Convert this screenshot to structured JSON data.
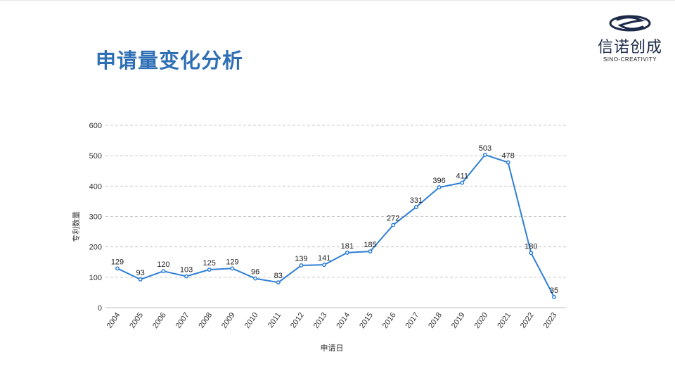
{
  "slide": {
    "title": "申请量变化分析"
  },
  "logo": {
    "name_cn": "信诺创成",
    "name_en": "SINO-CREATIVITY",
    "mark_icon": "sino-creativity-logo-icon",
    "color": "#1e2a4a"
  },
  "chart_data": {
    "type": "line",
    "title": "",
    "xlabel": "申请日",
    "ylabel": "专利数量",
    "ylim": [
      0,
      600
    ],
    "yticks": [
      0,
      100,
      200,
      300,
      400,
      500,
      600
    ],
    "grid": true,
    "legend": "none",
    "line_color": "#2f7fd6",
    "categories": [
      "2004",
      "2005",
      "2006",
      "2007",
      "2008",
      "2009",
      "2010",
      "2011",
      "2012",
      "2013",
      "2014",
      "2015",
      "2016",
      "2017",
      "2018",
      "2019",
      "2020",
      "2021",
      "2022",
      "2023"
    ],
    "series": [
      {
        "values": [
          129,
          93,
          120,
          103,
          125,
          129,
          96,
          83,
          139,
          141,
          181,
          185,
          272,
          331,
          396,
          411,
          503,
          478,
          180,
          35
        ]
      }
    ]
  }
}
